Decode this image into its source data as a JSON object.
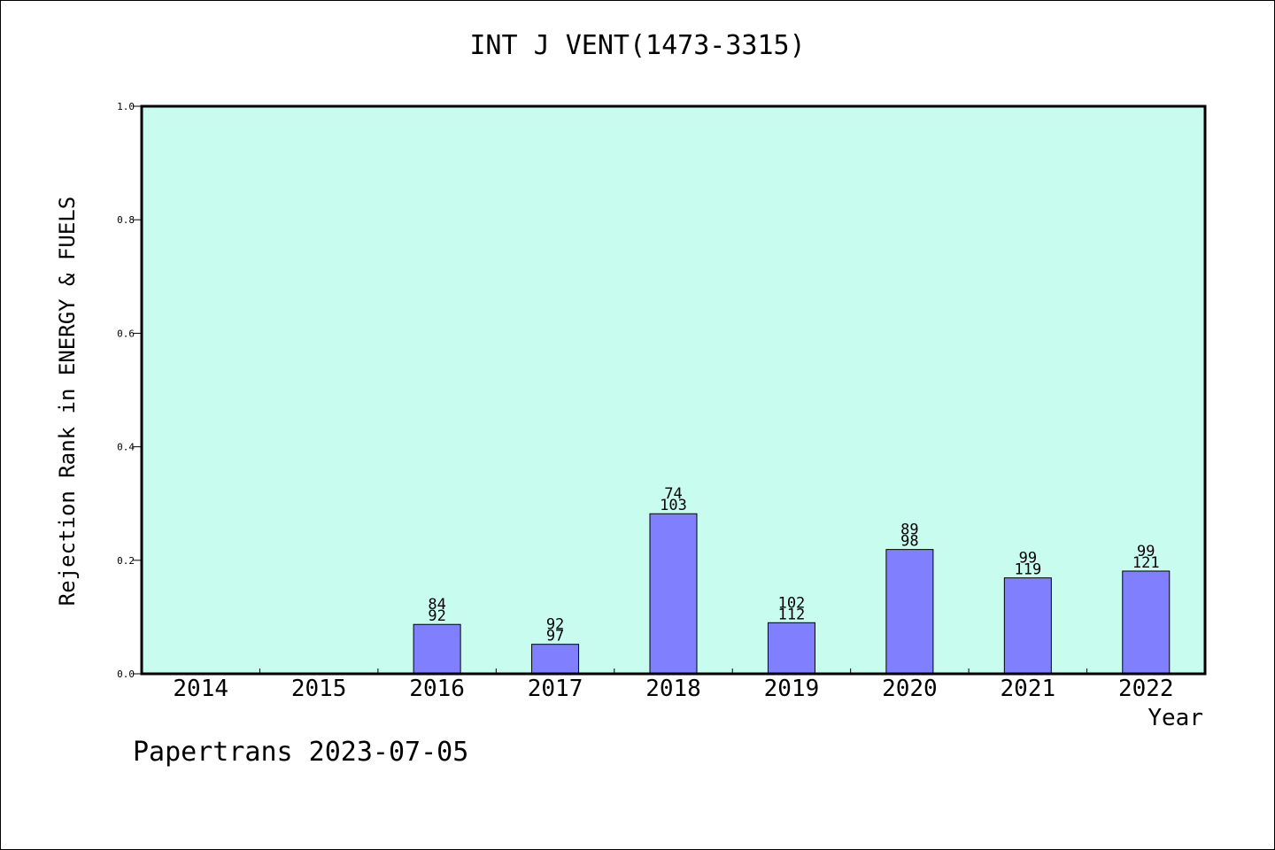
{
  "chart_data": {
    "type": "bar",
    "title": "INT J VENT(1473-3315)",
    "xlabel": "Year",
    "ylabel": "Rejection Rank in ENERGY & FUELS",
    "ylim": [
      0,
      1.0
    ],
    "yticks": [
      "0.0",
      "0.2",
      "0.4",
      "0.6",
      "0.8",
      "1.0"
    ],
    "categories": [
      "2014",
      "2015",
      "2016",
      "2017",
      "2018",
      "2019",
      "2020",
      "2021",
      "2022"
    ],
    "values": [
      null,
      null,
      0.087,
      0.052,
      0.282,
      0.09,
      0.219,
      0.169,
      0.181
    ],
    "labels_top": [
      null,
      null,
      "84",
      "92",
      "74",
      "102",
      "89",
      "99",
      "99"
    ],
    "labels_bottom": [
      null,
      null,
      "92",
      "97",
      "103",
      "112",
      "98",
      "119",
      "121"
    ],
    "grid": false,
    "colors": {
      "plot_background": "#c8fcee",
      "bar_fill": "#8080ff",
      "bar_stroke": "#000000"
    }
  },
  "footer": {
    "note": "Papertrans 2023-07-05"
  }
}
